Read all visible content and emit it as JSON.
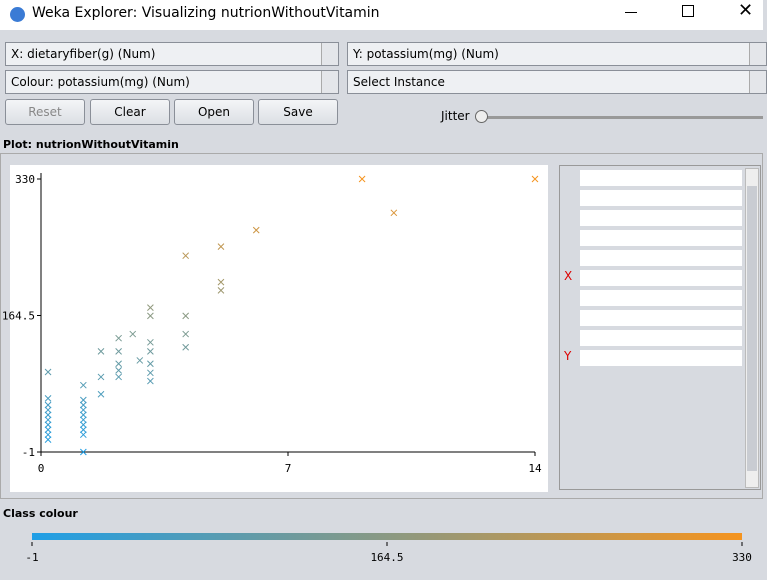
{
  "window": {
    "title": "Weka Explorer: Visualizing nutrionWithoutVitamin"
  },
  "controls": {
    "x_select": "X: dietaryfiber(g) (Num)",
    "y_select": "Y: potassium(mg) (Num)",
    "colour_select": "Colour: potassium(mg) (Num)",
    "instance_select": "Select Instance",
    "buttons": [
      "Reset",
      "Clear",
      "Open",
      "Save"
    ],
    "jitter": "Jitter"
  },
  "plot": {
    "title": "Plot: nutrionWithoutVitamin",
    "type": "scatter",
    "x": [
      0.2,
      0.2,
      0.2,
      0.2,
      0.2,
      0.2,
      0.2,
      0.2,
      0.2,
      0.2,
      1.2,
      1.2,
      1.2,
      1.2,
      1.2,
      1.2,
      1.2,
      1.2,
      1.2,
      1.2,
      1.7,
      1.7,
      1.7,
      2.2,
      2.2,
      2.2,
      2.2,
      2.2,
      2.6,
      2.8,
      3.1,
      3.1,
      3.1,
      3.1,
      3.1,
      3.1,
      3.1,
      4.1,
      4.1,
      4.1,
      4.1,
      5.1,
      5.1,
      5.1,
      6.1,
      9.1,
      10,
      14
    ],
    "y": [
      96,
      64,
      56,
      50,
      44,
      38,
      32,
      26,
      20,
      14,
      80,
      62,
      56,
      50,
      44,
      38,
      32,
      26,
      20,
      -1,
      121,
      90,
      69,
      137,
      121,
      106,
      98,
      90,
      142,
      110,
      174,
      164,
      132,
      121,
      106,
      95,
      85,
      237,
      164,
      142,
      126,
      248,
      205,
      195,
      268,
      330,
      289,
      330
    ],
    "xlim": [
      0,
      14
    ],
    "ylim": [
      -1,
      330
    ],
    "xticks": [
      0,
      7,
      14
    ],
    "yticks": [
      -1,
      164.5,
      330
    ],
    "colors": [
      "#1f9ee6",
      "#f5941f"
    ],
    "matrix_labels": [
      "X",
      "Y"
    ]
  },
  "class_colour": {
    "title": "Class colour",
    "ticks": [
      -1,
      164.5,
      330
    ]
  }
}
